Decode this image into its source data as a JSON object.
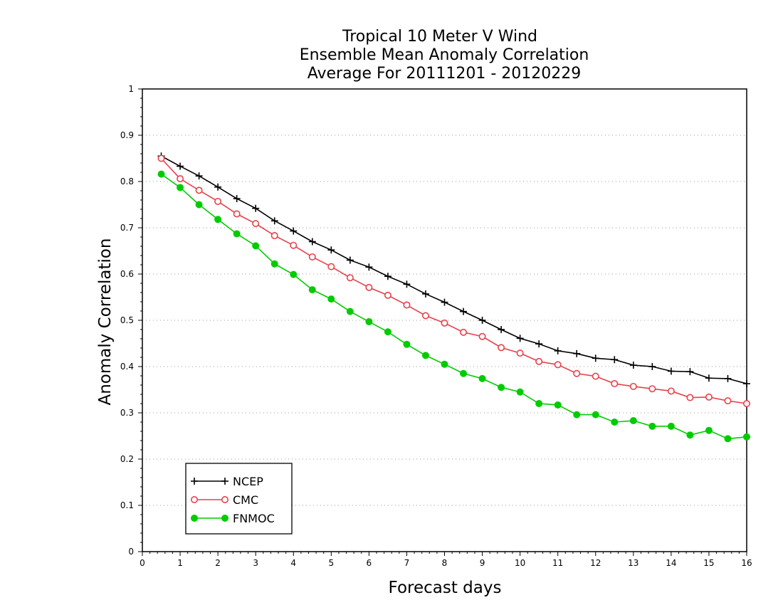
{
  "chart_data": {
    "type": "line",
    "title": [
      "Tropical 10 Meter V Wind",
      "Ensemble Mean Anomaly Correlation",
      "Average For 20111201 - 20120229"
    ],
    "xlabel": "Forecast days",
    "ylabel": "Anomaly Correlation",
    "xlim": [
      0,
      16
    ],
    "ylim": [
      0,
      1
    ],
    "x_ticks": [
      "0",
      "1",
      "2",
      "3",
      "4",
      "5",
      "6",
      "7",
      "8",
      "9",
      "10",
      "11",
      "12",
      "13",
      "14",
      "15",
      "16"
    ],
    "y_ticks": [
      "0",
      "0.1",
      "0.2",
      "0.3",
      "0.4",
      "0.5",
      "0.6",
      "0.7",
      "0.8",
      "0.9",
      "1"
    ],
    "grid": "horizontal dotted",
    "legend_placement": "bottom-left",
    "x": [
      0.5,
      1,
      1.5,
      2,
      2.5,
      3,
      3.5,
      4,
      4.5,
      5,
      5.5,
      6,
      6.5,
      7,
      7.5,
      8,
      8.5,
      9,
      9.5,
      10,
      10.5,
      11,
      11.5,
      12,
      12.5,
      13,
      13.5,
      14,
      14.5,
      15,
      15.5,
      16
    ],
    "series": [
      {
        "name": "NCEP",
        "color": "#000000",
        "marker": "plus",
        "values": [
          0.855,
          0.833,
          0.812,
          0.788,
          0.763,
          0.742,
          0.715,
          0.693,
          0.67,
          0.652,
          0.63,
          0.615,
          0.595,
          0.578,
          0.557,
          0.539,
          0.519,
          0.5,
          0.48,
          0.461,
          0.449,
          0.434,
          0.428,
          0.418,
          0.415,
          0.403,
          0.4,
          0.39,
          0.389,
          0.375,
          0.374,
          0.363
        ]
      },
      {
        "name": "CMC",
        "color": "#e8414b",
        "marker": "open-circle",
        "values": [
          0.85,
          0.806,
          0.781,
          0.757,
          0.73,
          0.709,
          0.683,
          0.662,
          0.637,
          0.616,
          0.592,
          0.571,
          0.554,
          0.533,
          0.51,
          0.494,
          0.474,
          0.465,
          0.441,
          0.429,
          0.411,
          0.404,
          0.385,
          0.379,
          0.363,
          0.357,
          0.352,
          0.347,
          0.333,
          0.334,
          0.326,
          0.32
        ]
      },
      {
        "name": "FNMOC",
        "color": "#00cc00",
        "marker": "filled-circle",
        "values": [
          0.816,
          0.787,
          0.75,
          0.718,
          0.687,
          0.661,
          0.622,
          0.599,
          0.566,
          0.546,
          0.519,
          0.497,
          0.475,
          0.448,
          0.424,
          0.405,
          0.385,
          0.374,
          0.355,
          0.345,
          0.32,
          0.317,
          0.296,
          0.296,
          0.28,
          0.283,
          0.271,
          0.271,
          0.252,
          0.262,
          0.244,
          0.248
        ]
      }
    ]
  }
}
